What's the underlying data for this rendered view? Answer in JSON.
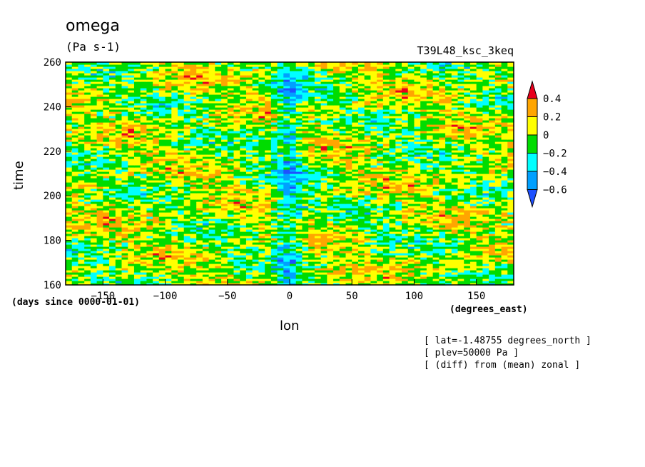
{
  "header": {
    "title": "omega",
    "units": "(Pa s-1)",
    "run": "T39L48_ksc_3keq"
  },
  "axes": {
    "ylabel": "time",
    "xlabel": "lon",
    "yunits": "(days since 0000-01-01)",
    "xunits": "(degrees_east)"
  },
  "info": [
    "[ lat=-1.48755 degrees_north ]",
    "[ plev=50000 Pa ]",
    "[ (diff) from (mean) zonal ]"
  ],
  "chart_data": {
    "type": "heatmap",
    "title": "omega",
    "subtitle": "(Pa s-1)",
    "xlabel": "lon",
    "ylabel": "time",
    "xlim": [
      -180,
      180
    ],
    "ylim": [
      160,
      260
    ],
    "xticks": [
      -150,
      -100,
      -50,
      0,
      50,
      100,
      150
    ],
    "yticks": [
      160,
      180,
      200,
      220,
      240,
      260
    ],
    "colorbar": {
      "labels": [
        "0.4",
        "0.2",
        "0",
        "-0.2",
        "-0.4",
        "-0.6"
      ],
      "colors": [
        "#e8001c",
        "#ffa500",
        "#ffff00",
        "#00dc00",
        "#00ffff",
        "#00a0ff",
        "#1e50ff"
      ],
      "levels": [
        0.4,
        0.2,
        0,
        -0.2,
        -0.4,
        -0.6
      ]
    },
    "features": {
      "negative_band_lon": 0,
      "description_values": "anomaly mostly between -0.2 and 0.2 with a persistent negative (blue) band near lon 0"
    }
  }
}
